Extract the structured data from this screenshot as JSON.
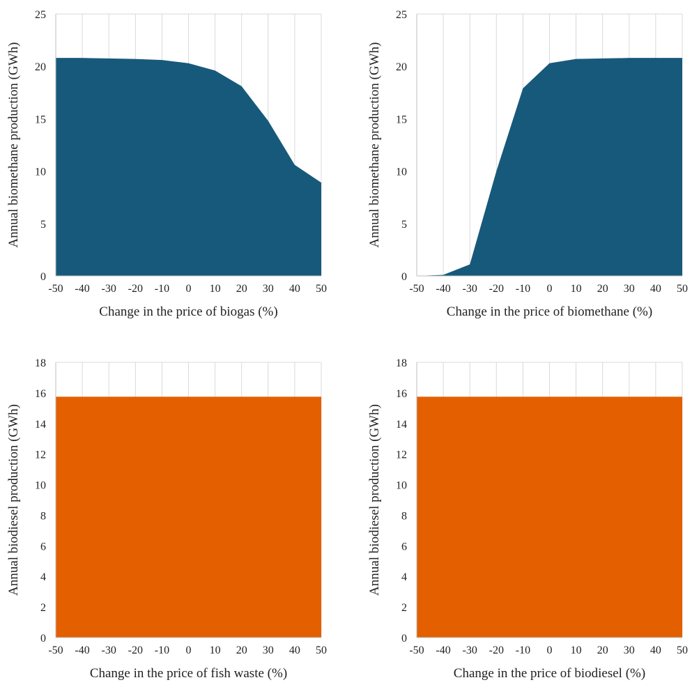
{
  "chart_data": [
    {
      "type": "area",
      "x": [
        -50,
        -40,
        -30,
        -20,
        -10,
        0,
        10,
        20,
        30,
        40,
        50
      ],
      "series": [
        {
          "values": [
            20.8,
            20.8,
            20.75,
            20.7,
            20.6,
            20.3,
            19.6,
            18.1,
            14.8,
            10.6,
            8.9
          ],
          "color": "#17597b"
        }
      ],
      "xlabel": "Change in the price of biogas (%)",
      "ylabel": "Annual biomethane production (GWh)",
      "xlim": [
        -50,
        50
      ],
      "ylim": [
        0,
        25
      ],
      "xticks": [
        -50,
        -40,
        -30,
        -20,
        -10,
        0,
        10,
        20,
        30,
        40,
        50
      ],
      "yticks": [
        0,
        5,
        10,
        15,
        20,
        25
      ],
      "grid": "vertical"
    },
    {
      "type": "area",
      "x": [
        -50,
        -40,
        -30,
        -20,
        -10,
        0,
        10,
        20,
        30,
        40,
        50
      ],
      "series": [
        {
          "values": [
            0,
            0.1,
            1.1,
            10.0,
            17.9,
            20.3,
            20.7,
            20.75,
            20.8,
            20.8,
            20.8
          ],
          "color": "#17597b"
        }
      ],
      "xlabel": "Change in the price of biomethane (%)",
      "ylabel": "Annual biomethane production (GWh)",
      "xlim": [
        -50,
        50
      ],
      "ylim": [
        0,
        25
      ],
      "xticks": [
        -50,
        -40,
        -30,
        -20,
        -10,
        0,
        10,
        20,
        30,
        40,
        50
      ],
      "yticks": [
        0,
        5,
        10,
        15,
        20,
        25
      ],
      "grid": "vertical"
    },
    {
      "type": "area",
      "x": [
        -50,
        -40,
        -30,
        -20,
        -10,
        0,
        10,
        20,
        30,
        40,
        50
      ],
      "series": [
        {
          "values": [
            15.75,
            15.75,
            15.75,
            15.75,
            15.75,
            15.75,
            15.75,
            15.75,
            15.75,
            15.75,
            15.75
          ],
          "color": "#e35f00"
        }
      ],
      "xlabel": "Change in the price of fish waste (%)",
      "ylabel": "Annual biodiesel production (GWh)",
      "xlim": [
        -50,
        50
      ],
      "ylim": [
        0,
        18
      ],
      "xticks": [
        -50,
        -40,
        -30,
        -20,
        -10,
        0,
        10,
        20,
        30,
        40,
        50
      ],
      "yticks": [
        0,
        2,
        4,
        6,
        8,
        10,
        12,
        14,
        16,
        18
      ],
      "grid": "vertical"
    },
    {
      "type": "area",
      "x": [
        -50,
        -40,
        -30,
        -20,
        -10,
        0,
        10,
        20,
        30,
        40,
        50
      ],
      "series": [
        {
          "values": [
            15.75,
            15.75,
            15.75,
            15.75,
            15.75,
            15.75,
            15.75,
            15.75,
            15.75,
            15.75,
            15.75
          ],
          "color": "#e35f00"
        }
      ],
      "xlabel": "Change in the price of biodiesel (%)",
      "ylabel": "Annual biodiesel production (GWh)",
      "xlim": [
        -50,
        50
      ],
      "ylim": [
        0,
        18
      ],
      "xticks": [
        -50,
        -40,
        -30,
        -20,
        -10,
        0,
        10,
        20,
        30,
        40,
        50
      ],
      "yticks": [
        0,
        2,
        4,
        6,
        8,
        10,
        12,
        14,
        16,
        18
      ],
      "grid": "vertical"
    }
  ]
}
